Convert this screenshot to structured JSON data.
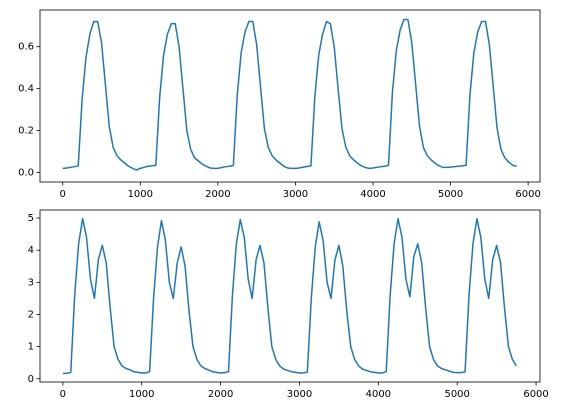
{
  "chart_data": [
    {
      "type": "line",
      "x": [
        0,
        50,
        100,
        150,
        200,
        250,
        300,
        350,
        400,
        450,
        500,
        550,
        600,
        650,
        700,
        750,
        800,
        850,
        900,
        950,
        1000,
        1050,
        1100,
        1150,
        1200,
        1250,
        1300,
        1350,
        1400,
        1450,
        1500,
        1550,
        1600,
        1650,
        1700,
        1750,
        1800,
        1850,
        1900,
        1950,
        2000,
        2050,
        2100,
        2150,
        2200,
        2250,
        2300,
        2350,
        2400,
        2450,
        2500,
        2550,
        2600,
        2650,
        2700,
        2750,
        2800,
        2850,
        2900,
        2950,
        3000,
        3050,
        3100,
        3150,
        3200,
        3250,
        3300,
        3350,
        3400,
        3450,
        3500,
        3550,
        3600,
        3650,
        3700,
        3750,
        3800,
        3850,
        3900,
        3950,
        4000,
        4050,
        4100,
        4150,
        4200,
        4250,
        4300,
        4350,
        4400,
        4450,
        4500,
        4550,
        4600,
        4650,
        4700,
        4750,
        4800,
        4850,
        4900,
        4950,
        5000,
        5050,
        5100,
        5150,
        5200,
        5250,
        5300,
        5350,
        5400,
        5450,
        5500,
        5550,
        5600,
        5650,
        5700,
        5750,
        5800,
        5850
      ],
      "series": [
        {
          "color": "#1f77b4",
          "values": [
            0.02,
            0.022,
            0.025,
            0.028,
            0.032,
            0.35,
            0.55,
            0.66,
            0.72,
            0.72,
            0.62,
            0.42,
            0.22,
            0.12,
            0.08,
            0.06,
            0.045,
            0.03,
            0.02,
            0.012,
            0.02,
            0.025,
            0.03,
            0.032,
            0.035,
            0.36,
            0.56,
            0.66,
            0.71,
            0.71,
            0.6,
            0.4,
            0.2,
            0.11,
            0.07,
            0.055,
            0.04,
            0.03,
            0.022,
            0.02,
            0.02,
            0.024,
            0.028,
            0.03,
            0.034,
            0.37,
            0.57,
            0.67,
            0.72,
            0.72,
            0.61,
            0.41,
            0.21,
            0.12,
            0.08,
            0.06,
            0.045,
            0.03,
            0.022,
            0.02,
            0.02,
            0.022,
            0.026,
            0.029,
            0.032,
            0.36,
            0.56,
            0.66,
            0.72,
            0.71,
            0.6,
            0.4,
            0.21,
            0.12,
            0.08,
            0.06,
            0.045,
            0.032,
            0.024,
            0.02,
            0.022,
            0.025,
            0.028,
            0.03,
            0.034,
            0.38,
            0.58,
            0.68,
            0.73,
            0.73,
            0.62,
            0.42,
            0.22,
            0.12,
            0.08,
            0.06,
            0.045,
            0.032,
            0.025,
            0.025,
            0.026,
            0.028,
            0.03,
            0.032,
            0.035,
            0.37,
            0.57,
            0.67,
            0.72,
            0.72,
            0.61,
            0.41,
            0.21,
            0.11,
            0.07,
            0.05,
            0.035,
            0.03
          ]
        }
      ],
      "xlim": [
        -293,
        6153
      ],
      "ylim": [
        -0.045,
        0.775
      ],
      "xticks": [
        0,
        1000,
        2000,
        3000,
        4000,
        5000,
        6000
      ],
      "yticks": [
        {
          "value": 0,
          "label": "0.0"
        },
        {
          "value": 0.2,
          "label": "0.2"
        },
        {
          "value": 0.4,
          "label": "0.4"
        },
        {
          "value": 0.6,
          "label": "0.6"
        }
      ]
    },
    {
      "type": "line",
      "x": [
        0,
        50,
        100,
        150,
        200,
        250,
        300,
        350,
        400,
        450,
        500,
        550,
        600,
        650,
        700,
        750,
        800,
        850,
        900,
        950,
        1000,
        1050,
        1100,
        1150,
        1200,
        1250,
        1300,
        1350,
        1400,
        1450,
        1500,
        1550,
        1600,
        1650,
        1700,
        1750,
        1800,
        1850,
        1900,
        1950,
        2000,
        2050,
        2100,
        2150,
        2200,
        2250,
        2300,
        2350,
        2400,
        2450,
        2500,
        2550,
        2600,
        2650,
        2700,
        2750,
        2800,
        2850,
        2900,
        2950,
        3000,
        3050,
        3100,
        3150,
        3200,
        3250,
        3300,
        3350,
        3400,
        3450,
        3500,
        3550,
        3600,
        3650,
        3700,
        3750,
        3800,
        3850,
        3900,
        3950,
        4000,
        4050,
        4100,
        4150,
        4200,
        4250,
        4300,
        4350,
        4400,
        4450,
        4500,
        4550,
        4600,
        4650,
        4700,
        4750,
        4800,
        4850,
        4900,
        4950,
        5000,
        5050,
        5100,
        5150,
        5200,
        5250,
        5300,
        5350,
        5400,
        5450,
        5500,
        5550,
        5600,
        5650,
        5700,
        5750
      ],
      "series": [
        {
          "color": "#1f77b4",
          "values": [
            0.17,
            0.17,
            0.2,
            2.6,
            4.2,
            4.98,
            4.4,
            3.1,
            2.5,
            3.7,
            4.15,
            3.6,
            2.2,
            1.0,
            0.6,
            0.4,
            0.32,
            0.28,
            0.22,
            0.2,
            0.18,
            0.18,
            0.22,
            2.5,
            4.1,
            4.92,
            4.3,
            3.0,
            2.5,
            3.6,
            4.1,
            3.5,
            2.1,
            1.0,
            0.6,
            0.4,
            0.32,
            0.27,
            0.22,
            0.2,
            0.18,
            0.19,
            0.22,
            2.6,
            4.2,
            4.95,
            4.4,
            3.1,
            2.5,
            3.7,
            4.15,
            3.6,
            2.2,
            1.0,
            0.6,
            0.4,
            0.3,
            0.26,
            0.22,
            0.2,
            0.18,
            0.18,
            0.21,
            2.5,
            4.1,
            4.88,
            4.3,
            3.0,
            2.5,
            3.7,
            4.15,
            3.5,
            2.1,
            1.0,
            0.6,
            0.4,
            0.3,
            0.26,
            0.22,
            0.2,
            0.18,
            0.18,
            0.22,
            2.6,
            4.2,
            4.98,
            4.4,
            3.1,
            2.55,
            3.8,
            4.2,
            3.6,
            2.2,
            1.0,
            0.6,
            0.4,
            0.32,
            0.28,
            0.24,
            0.2,
            0.19,
            0.19,
            0.22,
            2.6,
            4.2,
            4.98,
            4.4,
            3.1,
            2.5,
            3.7,
            4.15,
            3.6,
            2.2,
            1.0,
            0.6,
            0.4
          ]
        }
      ],
      "xlim": [
        -290,
        6050
      ],
      "ylim": [
        -0.1,
        5.25
      ],
      "xticks": [
        0,
        1000,
        2000,
        3000,
        4000,
        5000,
        6000
      ],
      "yticks": [
        0,
        1,
        2,
        3,
        4,
        5
      ]
    }
  ]
}
